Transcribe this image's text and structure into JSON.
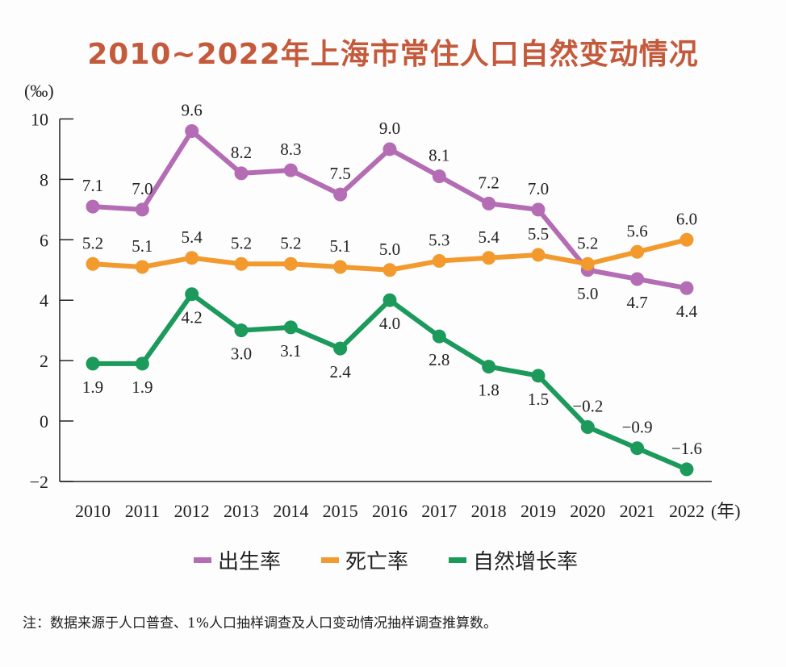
{
  "chart_data": {
    "type": "line",
    "title": "2010~2022年上海市常住人口自然变动情况",
    "ylabel": "(‰)",
    "xlabel": "(年)",
    "ylim": [
      -2,
      10
    ],
    "yticks": [
      "−2",
      "0",
      "2",
      "4",
      "6",
      "8",
      "10"
    ],
    "categories": [
      "2010",
      "2011",
      "2012",
      "2013",
      "2014",
      "2015",
      "2016",
      "2017",
      "2018",
      "2019",
      "2020",
      "2021",
      "2022"
    ],
    "legend_position": "bottom",
    "grid": false,
    "series": [
      {
        "name": "出生率",
        "color": "#b46cb4",
        "values": [
          7.1,
          7.0,
          9.6,
          8.2,
          8.3,
          7.5,
          9.0,
          8.1,
          7.2,
          7.0,
          5.0,
          4.7,
          4.4
        ]
      },
      {
        "name": "死亡率",
        "color": "#f29a2e",
        "values": [
          5.2,
          5.1,
          5.4,
          5.2,
          5.2,
          5.1,
          5.0,
          5.3,
          5.4,
          5.5,
          5.2,
          5.6,
          6.0
        ]
      },
      {
        "name": "自然增长率",
        "color": "#1b9a5c",
        "values": [
          1.9,
          1.9,
          4.2,
          3.0,
          3.1,
          2.4,
          4.0,
          2.8,
          1.8,
          1.5,
          -0.2,
          -0.9,
          -1.6
        ]
      }
    ],
    "note": "注：数据来源于人口普查、1%人口抽样调查及人口变动情况抽样调查推算数。"
  }
}
